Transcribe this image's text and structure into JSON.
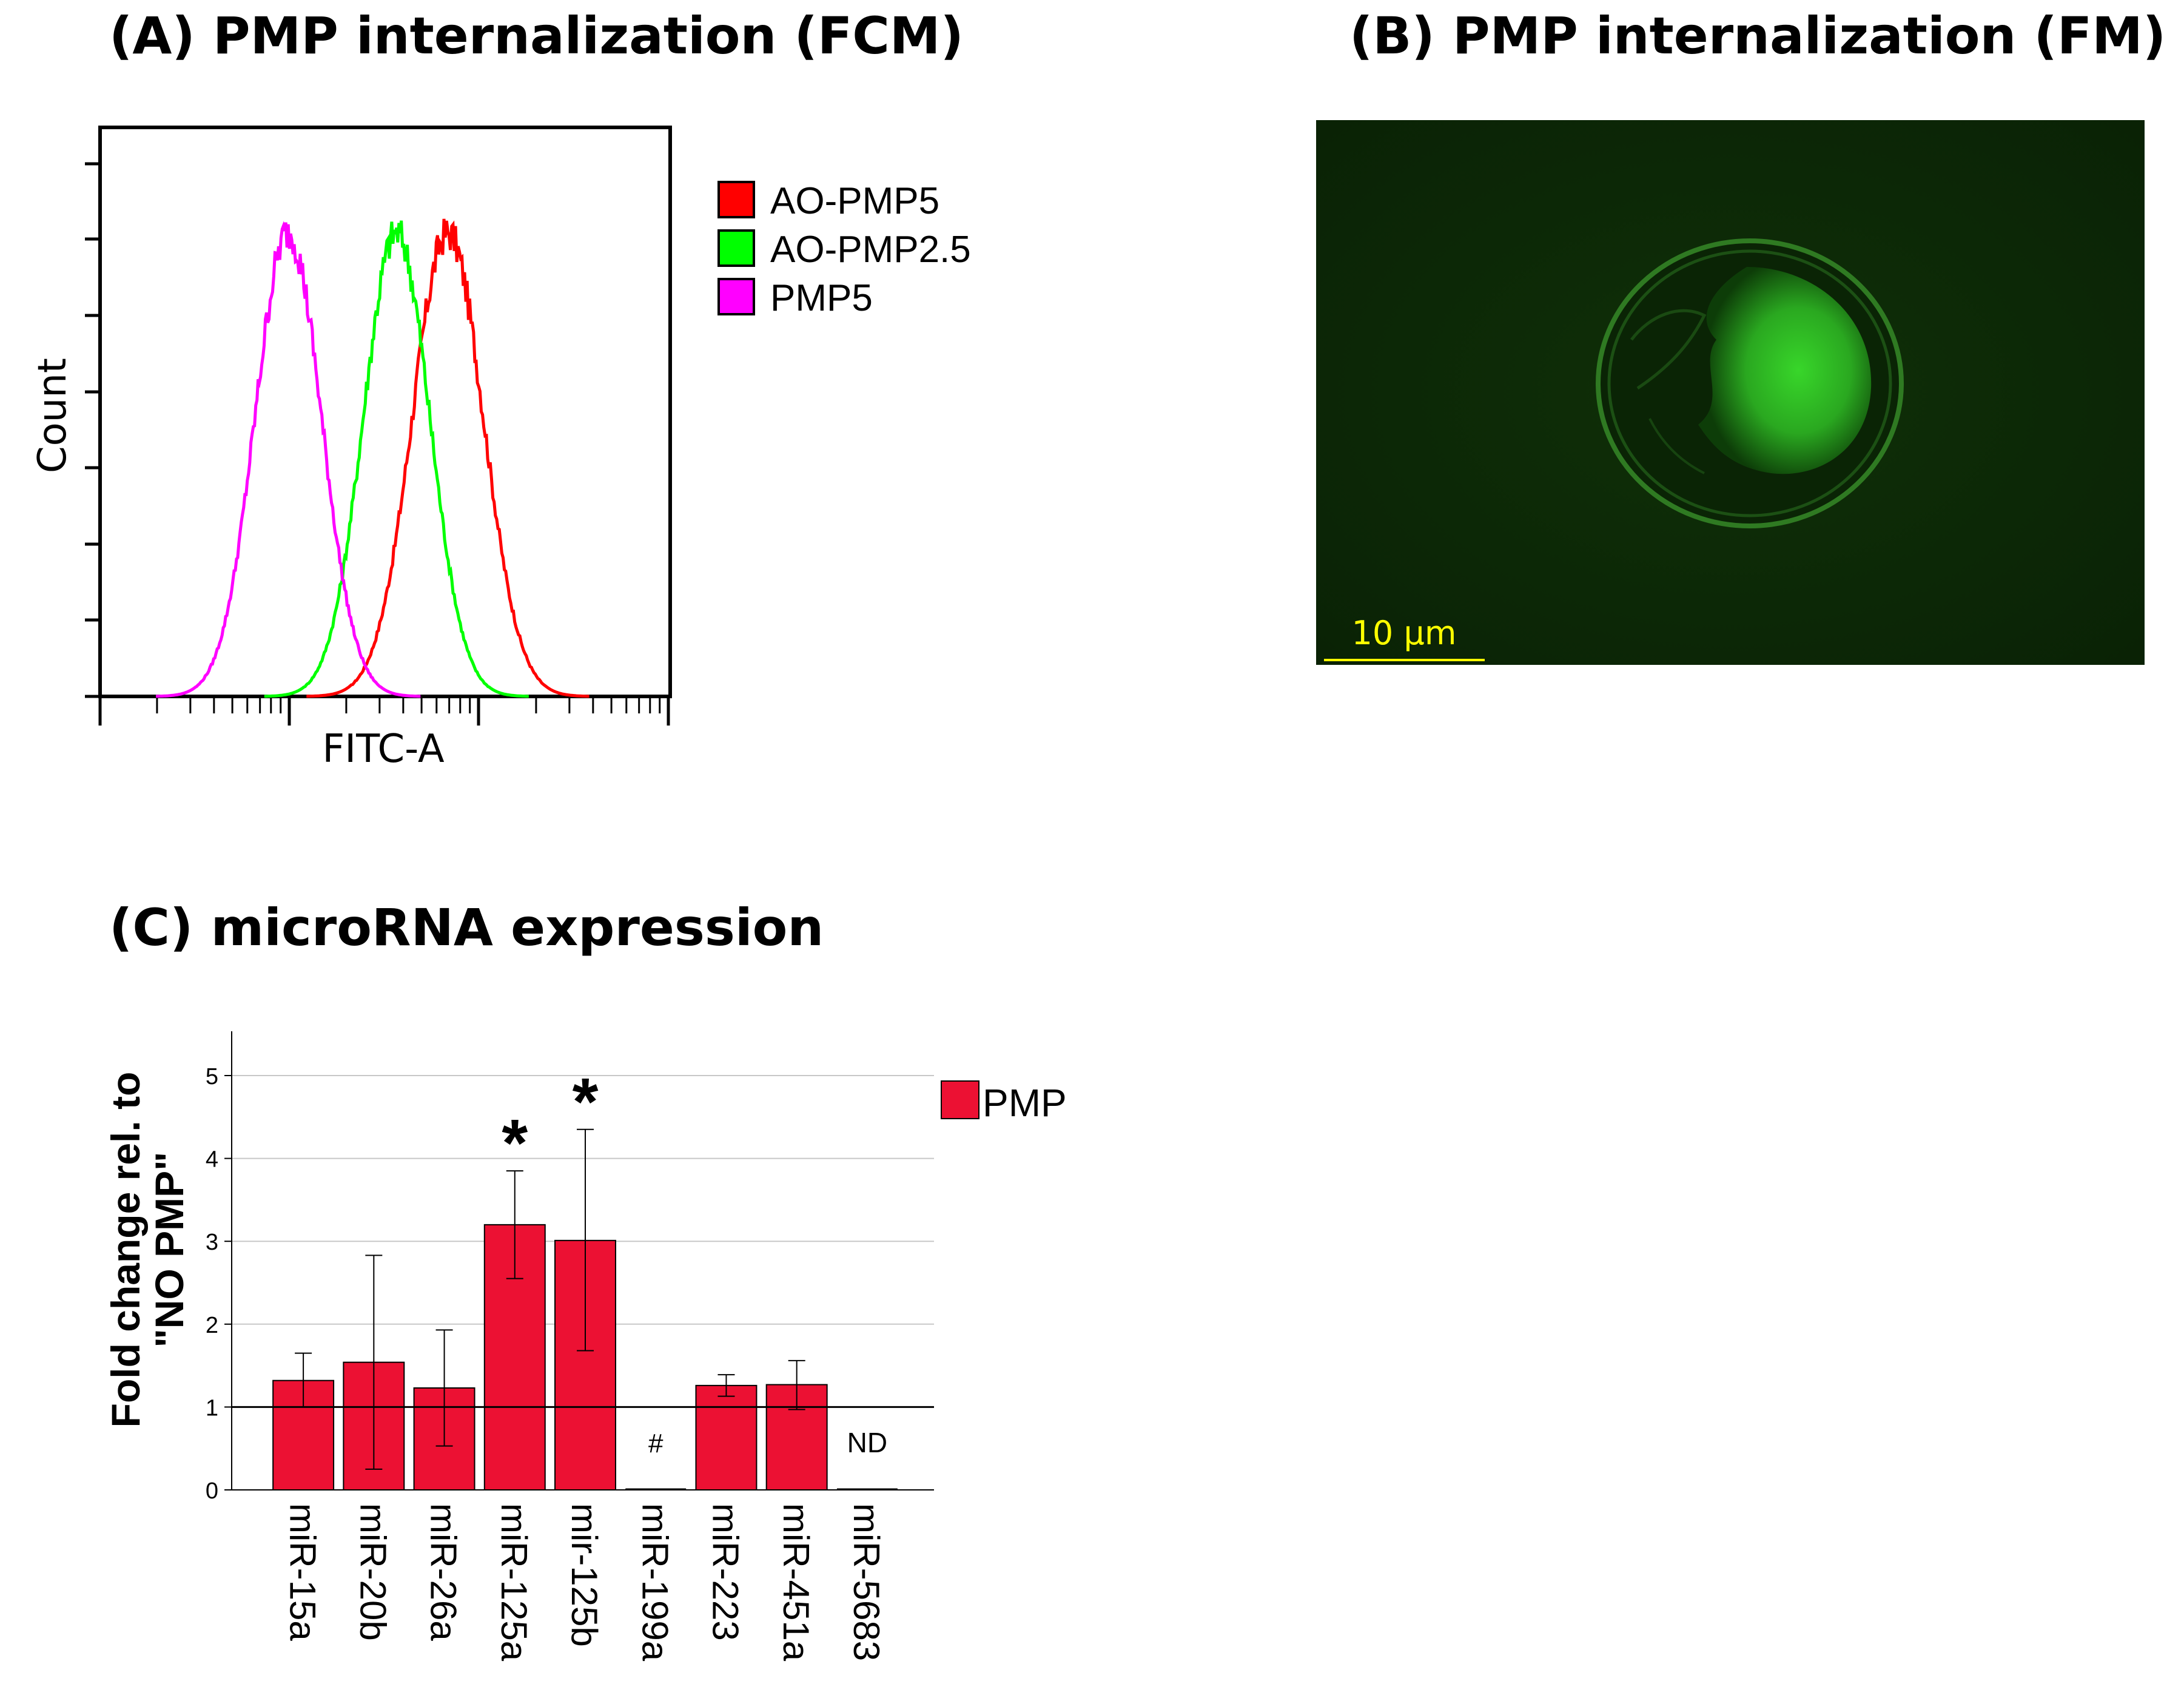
{
  "panel_a": {
    "title": "(A) PMP internalization (FCM)",
    "ylabel": "Count",
    "xlabel": "FITC-A",
    "legend": [
      {
        "label": "AO-PMP5",
        "color": "#ff0000"
      },
      {
        "label": "AO-PMP2.5",
        "color": "#00ff00"
      },
      {
        "label": "PMP5",
        "color": "#ff00ff"
      }
    ]
  },
  "panel_b": {
    "title": "(B) PMP internalization (FM)",
    "scale_bar_label": "10 μm",
    "scale_bar_color": "#ffff00",
    "background_color": "#0d2a08"
  },
  "panel_c": {
    "title": "(C) microRNA expression",
    "ylabel_line1": "Fold change rel. to",
    "ylabel_line2": "\"NO PMP\"",
    "legend_label": "PMP",
    "bar_color": "#ec1133"
  },
  "chart_data": [
    {
      "type": "line",
      "title": "",
      "xlabel": "FITC-A",
      "ylabel": "Count",
      "x_scale": "log",
      "grid": false,
      "legend_position": "right",
      "series": [
        {
          "name": "AO-PMP5",
          "color": "#ff0000",
          "peak_relative_position": 0.61
        },
        {
          "name": "AO-PMP2.5",
          "color": "#00ff00",
          "peak_relative_position": 0.52
        },
        {
          "name": "PMP5",
          "color": "#ff00ff",
          "peak_relative_position": 0.33
        }
      ]
    },
    {
      "type": "bar",
      "title": "",
      "xlabel": "",
      "ylabel": "Fold change rel. to \"NO PMP\"",
      "ylim": [
        0,
        5.5
      ],
      "yticks": [
        0,
        1,
        2,
        3,
        4,
        5
      ],
      "grid": true,
      "reference_line": 1,
      "legend_position": "top-right",
      "categories": [
        "miR-15a",
        "miR-20b",
        "miR-26a",
        "miR-125a",
        "mir-125b",
        "miR-199a",
        "miR-223",
        "miR-451a",
        "miR-5683"
      ],
      "series": [
        {
          "name": "PMP",
          "values": [
            1.32,
            1.54,
            1.23,
            3.2,
            3.01,
            0,
            1.26,
            1.27,
            0
          ],
          "error_low": [
            1.0,
            0.25,
            0.53,
            2.55,
            1.68,
            null,
            1.13,
            0.97,
            null
          ],
          "error_high": [
            1.65,
            2.83,
            1.93,
            3.85,
            4.35,
            null,
            1.39,
            1.56,
            null
          ]
        }
      ],
      "annotations": [
        {
          "category": "miR-125a",
          "text": "*"
        },
        {
          "category": "mir-125b",
          "text": "*"
        },
        {
          "category": "miR-199a",
          "text": "#"
        },
        {
          "category": "miR-5683",
          "text": "ND"
        }
      ]
    }
  ]
}
